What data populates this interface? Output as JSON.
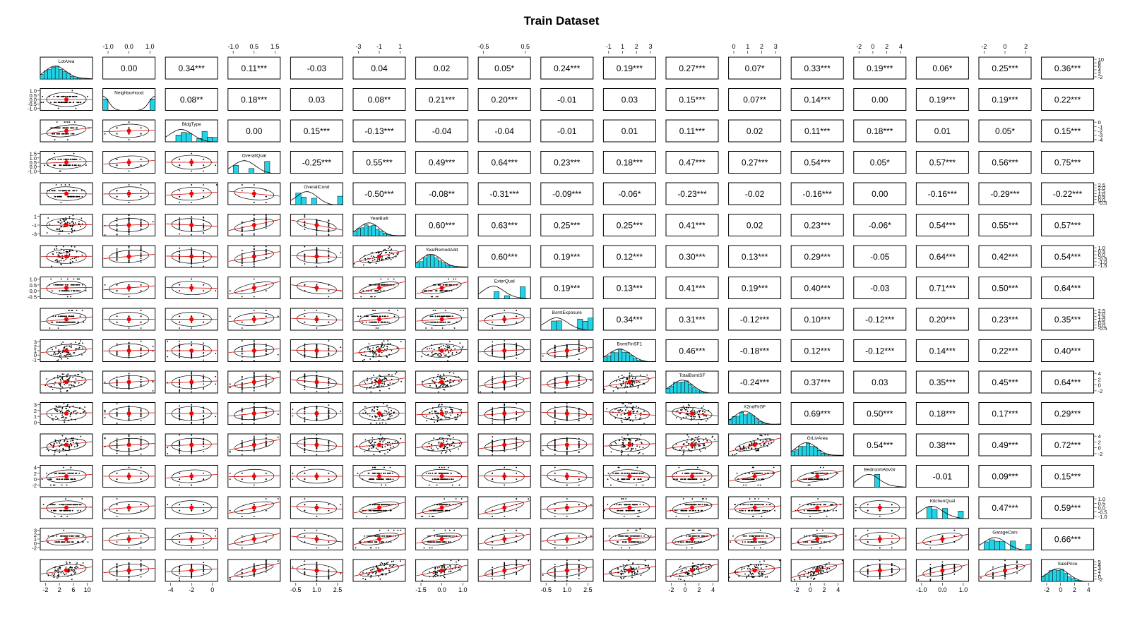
{
  "chart_data": {
    "type": "scatter",
    "title": "Train Dataset",
    "variables": [
      "LotArea",
      "Neighborhood",
      "BldgType",
      "OverallQual",
      "OverallCond",
      "YearBuilt",
      "YearRemodAdd",
      "ExterQual",
      "BsmtExposure",
      "BsmtFinSF1",
      "TotalBsmtSF",
      "X2ndFlrSF",
      "GrLivArea",
      "BedroomAbvGr",
      "KitchenQual",
      "GarageCars",
      "SalePrice"
    ],
    "correlations": [
      [
        null,
        "0.00",
        "0.34***",
        "0.11***",
        "-0.03",
        "0.04",
        "0.02",
        "0.05*",
        "0.24***",
        "0.19***",
        "0.27***",
        "0.07*",
        "0.33***",
        "0.19***",
        "0.06*",
        "0.25***",
        "0.36***"
      ],
      [
        null,
        null,
        "0.08**",
        "0.18***",
        "0.03",
        "0.08**",
        "0.21***",
        "0.20***",
        "-0.01",
        "0.03",
        "0.15***",
        "0.07**",
        "0.14***",
        "0.00",
        "0.19***",
        "0.19***",
        "0.22***"
      ],
      [
        null,
        null,
        null,
        "0.00",
        "0.15***",
        "-0.13***",
        "-0.04",
        "-0.04",
        "-0.01",
        "0.01",
        "0.11***",
        "0.02",
        "0.11***",
        "0.18***",
        "0.01",
        "0.05*",
        "0.15***"
      ],
      [
        null,
        null,
        null,
        null,
        "-0.25***",
        "0.55***",
        "0.49***",
        "0.64***",
        "0.23***",
        "0.18***",
        "0.47***",
        "0.27***",
        "0.54***",
        "0.05*",
        "0.57***",
        "0.56***",
        "0.75***"
      ],
      [
        null,
        null,
        null,
        null,
        null,
        "-0.50***",
        "-0.08**",
        "-0.31***",
        "-0.09***",
        "-0.06*",
        "-0.23***",
        "-0.02",
        "-0.16***",
        "0.00",
        "-0.16***",
        "-0.29***",
        "-0.22***"
      ],
      [
        null,
        null,
        null,
        null,
        null,
        null,
        "0.60***",
        "0.63***",
        "0.25***",
        "0.25***",
        "0.41***",
        "0.02",
        "0.23***",
        "-0.06*",
        "0.54***",
        "0.55***",
        "0.57***"
      ],
      [
        null,
        null,
        null,
        null,
        null,
        null,
        null,
        "0.60***",
        "0.19***",
        "0.12***",
        "0.30***",
        "0.13***",
        "0.29***",
        "-0.05",
        "0.64***",
        "0.42***",
        "0.54***"
      ],
      [
        null,
        null,
        null,
        null,
        null,
        null,
        null,
        null,
        "0.19***",
        "0.13***",
        "0.41***",
        "0.19***",
        "0.40***",
        "-0.03",
        "0.71***",
        "0.50***",
        "0.64***"
      ],
      [
        null,
        null,
        null,
        null,
        null,
        null,
        null,
        null,
        null,
        "0.34***",
        "0.31***",
        "-0.12***",
        "0.10***",
        "-0.12***",
        "0.20***",
        "0.23***",
        "0.35***"
      ],
      [
        null,
        null,
        null,
        null,
        null,
        null,
        null,
        null,
        null,
        null,
        "0.46***",
        "-0.18***",
        "0.12***",
        "-0.12***",
        "0.14***",
        "0.22***",
        "0.40***"
      ],
      [
        null,
        null,
        null,
        null,
        null,
        null,
        null,
        null,
        null,
        null,
        null,
        "-0.24***",
        "0.37***",
        "0.03",
        "0.35***",
        "0.45***",
        "0.64***"
      ],
      [
        null,
        null,
        null,
        null,
        null,
        null,
        null,
        null,
        null,
        null,
        null,
        null,
        "0.69***",
        "0.50***",
        "0.18***",
        "0.17***",
        "0.29***"
      ],
      [
        null,
        null,
        null,
        null,
        null,
        null,
        null,
        null,
        null,
        null,
        null,
        null,
        null,
        "0.54***",
        "0.38***",
        "0.49***",
        "0.72***"
      ],
      [
        null,
        null,
        null,
        null,
        null,
        null,
        null,
        null,
        null,
        null,
        null,
        null,
        null,
        null,
        "-0.01",
        "0.09***",
        "0.15***"
      ],
      [
        null,
        null,
        null,
        null,
        null,
        null,
        null,
        null,
        null,
        null,
        null,
        null,
        null,
        null,
        null,
        "0.47***",
        "0.59***"
      ],
      [
        null,
        null,
        null,
        null,
        null,
        null,
        null,
        null,
        null,
        null,
        null,
        null,
        null,
        null,
        null,
        null,
        "0.66***"
      ]
    ],
    "top_ticks": {
      "1": [
        "-1.0",
        "0.0",
        "1.0"
      ],
      "3": [
        "-1.0",
        "0.5",
        "1.5"
      ],
      "5": [
        "-3",
        "-1",
        "1"
      ],
      "7": [
        "-0.5",
        "0.5"
      ],
      "9": [
        "-1",
        "1",
        "2",
        "3"
      ],
      "11": [
        "0",
        "1",
        "2",
        "3"
      ],
      "13": [
        "-2",
        "0",
        "2",
        "4"
      ],
      "15": [
        "-2",
        "0",
        "2"
      ]
    },
    "bottom_ticks": {
      "0": [
        "-2",
        "2",
        "6",
        "10"
      ],
      "2": [
        "-4",
        "-2",
        "0"
      ],
      "4": [
        "-0.5",
        "1.0",
        "2.5"
      ],
      "6": [
        "-1.5",
        "0.0",
        "1.0"
      ],
      "8": [
        "-0.5",
        "1.0",
        "2.5"
      ],
      "10": [
        "-2",
        "0",
        "2",
        "4"
      ],
      "12": [
        "-2",
        "0",
        "2",
        "4"
      ],
      "14": [
        "-1.0",
        "0.0",
        "1.0"
      ],
      "16": [
        "-2",
        "0",
        "2",
        "4"
      ]
    },
    "left_ticks": {
      "1": [
        "1.0",
        "0.5",
        "0.0",
        "-0.5",
        "-1.0"
      ],
      "3": [
        "1.5",
        "1.0",
        "0.5",
        "0.0",
        "-1.0"
      ],
      "5": [
        "1",
        "-1",
        "-3"
      ],
      "7": [
        "1.0",
        "0.5",
        "0.0",
        "-0.5"
      ],
      "9": [
        "3",
        "2",
        "1",
        "0",
        "-1"
      ],
      "11": [
        "3",
        "2",
        "1",
        "0"
      ],
      "13": [
        "4",
        "2",
        "0",
        "-2"
      ],
      "15": [
        "3",
        "2",
        "1",
        "0",
        "-2"
      ]
    },
    "right_ticks": {
      "0": [
        "10",
        "8",
        "6",
        "4",
        "2",
        "-2"
      ],
      "2": [
        "0",
        "-1",
        "-2",
        "-3",
        "-4"
      ],
      "4": [
        "2.5",
        "2.0",
        "1.5",
        "1.0",
        "0.5",
        "0.0",
        "-0.5"
      ],
      "6": [
        "1.0",
        "0.5",
        "0.0",
        "-0.5",
        "-1.0",
        "-1.5"
      ],
      "8": [
        "2.5",
        "2.0",
        "1.5",
        "1.0",
        "0.5",
        "0.0",
        "-0.5"
      ],
      "10": [
        "4",
        "2",
        "0",
        "-2"
      ],
      "12": [
        "4",
        "2",
        "0",
        "-2"
      ],
      "14": [
        "1.0",
        "0.5",
        "0.0",
        "-0.5",
        "-1.0"
      ],
      "16": [
        "5",
        "4",
        "3",
        "2",
        "1",
        "0",
        "-2"
      ]
    },
    "variable_kind": [
      "cont",
      "bin",
      "disc",
      "disc",
      "disc",
      "cont",
      "cont",
      "disc",
      "disc",
      "cont",
      "cont",
      "cont",
      "cont",
      "disc",
      "disc",
      "disc",
      "cont"
    ],
    "grid": false,
    "colors": {
      "points": "#000000",
      "fit_line": "#cc0000",
      "centroid": "#ff0000",
      "histogram": "#22d3e6",
      "density": "#000000",
      "panel_border": "#000000"
    }
  }
}
